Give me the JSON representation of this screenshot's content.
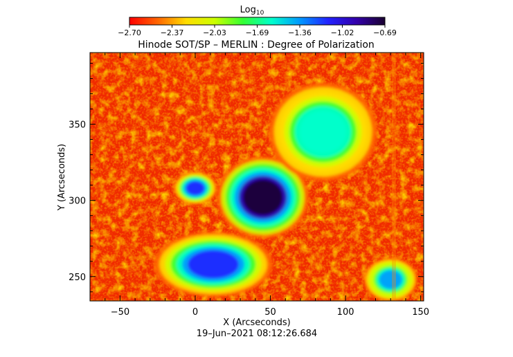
{
  "chart_data": {
    "type": "heatmap",
    "title": "Hinode SOT/SP – MERLIN : Degree of Polarization",
    "xlabel": "X (Arcseconds)",
    "ylabel": "Y (Arcseconds)",
    "footer": "19–Jun–2021 08:12:26.684",
    "colorbar": {
      "label": "Log",
      "label_sub": "10",
      "ticks": [
        "−2.70",
        "−2.37",
        "−2.03",
        "−1.69",
        "−1.36",
        "−1.02",
        "−0.69"
      ],
      "range": [
        -2.7,
        -0.69
      ],
      "colors": [
        "#ff0000",
        "#ff6600",
        "#ffdd00",
        "#ccff00",
        "#33ff33",
        "#00ffcc",
        "#0099ff",
        "#2222ff",
        "#3300aa",
        "#1a0030"
      ]
    },
    "xlim": [
      -70,
      152
    ],
    "ylim": [
      234,
      397
    ],
    "xticks": [
      {
        "v": -50,
        "label": "−50"
      },
      {
        "v": 0,
        "label": "0"
      },
      {
        "v": 50,
        "label": "50"
      },
      {
        "v": 100,
        "label": "100"
      },
      {
        "v": 150,
        "label": "150"
      }
    ],
    "yticks": [
      {
        "v": 250,
        "label": "250"
      },
      {
        "v": 300,
        "label": "300"
      },
      {
        "v": 350,
        "label": "350"
      }
    ],
    "features": [
      {
        "name": "sunspot umbra",
        "x": 45,
        "y": 302,
        "rx": 17,
        "ry": 15,
        "log_value": -0.75
      },
      {
        "name": "plage patch",
        "x": 12,
        "y": 258,
        "rx": 22,
        "ry": 12,
        "log_value": -1.1
      },
      {
        "name": "plage patch",
        "x": 85,
        "y": 345,
        "rx": 20,
        "ry": 18,
        "log_value": -1.5
      },
      {
        "name": "plage patch",
        "x": 0,
        "y": 308,
        "rx": 8,
        "ry": 6,
        "log_value": -1.2
      },
      {
        "name": "network patch",
        "x": 130,
        "y": 248,
        "rx": 10,
        "ry": 8,
        "log_value": -1.4
      }
    ],
    "background_log_value": -2.65
  }
}
